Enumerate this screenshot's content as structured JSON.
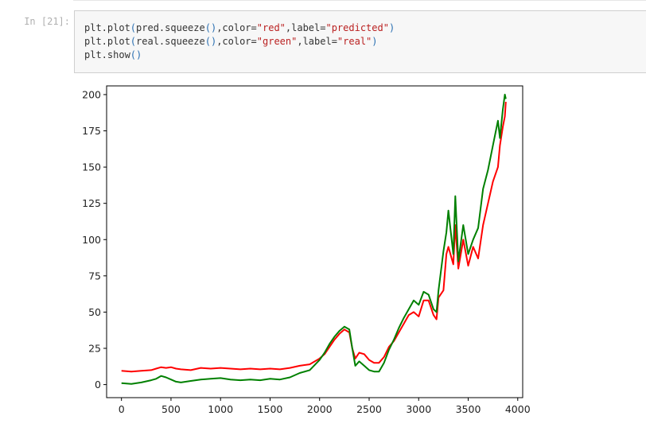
{
  "cell": {
    "prompt": "In [21]:",
    "code_lines": [
      {
        "parts": [
          {
            "t": "plt.plot",
            "c": "kw"
          },
          {
            "t": "(",
            "c": "paren"
          },
          {
            "t": "pred.squeeze",
            "c": "kw"
          },
          {
            "t": "()",
            "c": "paren"
          },
          {
            "t": ",color=",
            "c": "kw"
          },
          {
            "t": "\"red\"",
            "c": "str"
          },
          {
            "t": ",label=",
            "c": "kw"
          },
          {
            "t": "\"predicted\"",
            "c": "str"
          },
          {
            "t": ")",
            "c": "paren"
          }
        ]
      },
      {
        "parts": [
          {
            "t": "plt.plot",
            "c": "kw"
          },
          {
            "t": "(",
            "c": "paren"
          },
          {
            "t": "real.squeeze",
            "c": "kw"
          },
          {
            "t": "()",
            "c": "paren"
          },
          {
            "t": ",color=",
            "c": "kw"
          },
          {
            "t": "\"green\"",
            "c": "str"
          },
          {
            "t": ",label=",
            "c": "kw"
          },
          {
            "t": "\"real\"",
            "c": "str"
          },
          {
            "t": ")",
            "c": "paren"
          }
        ]
      },
      {
        "parts": [
          {
            "t": "plt.show",
            "c": "kw"
          },
          {
            "t": "()",
            "c": "paren"
          }
        ]
      }
    ]
  },
  "chart_data": {
    "type": "line",
    "title": "",
    "xlabel": "",
    "ylabel": "",
    "xlim": [
      -150,
      4050
    ],
    "ylim": [
      -9,
      206
    ],
    "x_ticks": [
      0,
      500,
      1000,
      1500,
      2000,
      2500,
      3000,
      3500,
      4000
    ],
    "y_ticks": [
      0,
      25,
      50,
      75,
      100,
      125,
      150,
      175,
      200
    ],
    "grid": false,
    "legend": false,
    "series": [
      {
        "color": "#ff0000",
        "x": [
          0,
          100,
          200,
          300,
          350,
          400,
          450,
          500,
          550,
          600,
          700,
          800,
          900,
          1000,
          1100,
          1200,
          1300,
          1400,
          1500,
          1600,
          1700,
          1800,
          1900,
          2000,
          2050,
          2100,
          2150,
          2200,
          2250,
          2300,
          2330,
          2360,
          2400,
          2450,
          2500,
          2550,
          2600,
          2650,
          2700,
          2750,
          2800,
          2850,
          2900,
          2950,
          3000,
          3050,
          3100,
          3150,
          3180,
          3200,
          3250,
          3280,
          3300,
          3350,
          3370,
          3400,
          3450,
          3500,
          3550,
          3600,
          3650,
          3700,
          3750,
          3800,
          3820,
          3850,
          3870,
          3880
        ],
        "values": [
          9.5,
          9,
          9.5,
          10,
          11,
          12,
          11.5,
          12,
          11,
          10.5,
          10,
          11.5,
          11,
          11.5,
          11,
          10.5,
          11,
          10.5,
          11,
          10.5,
          11.5,
          13,
          14,
          18,
          21,
          26,
          31,
          35,
          38,
          36,
          25,
          18,
          22,
          21,
          17,
          15,
          15,
          19,
          26,
          30,
          36,
          42,
          48,
          50,
          47,
          58,
          58,
          48,
          45,
          60,
          65,
          90,
          95,
          83,
          110,
          80,
          100,
          82,
          95,
          87,
          110,
          125,
          140,
          150,
          165,
          178,
          185,
          195
        ]
      },
      {
        "color": "#008000",
        "x": [
          0,
          100,
          200,
          300,
          350,
          400,
          450,
          500,
          550,
          600,
          700,
          800,
          900,
          1000,
          1100,
          1200,
          1300,
          1400,
          1500,
          1600,
          1700,
          1800,
          1900,
          2000,
          2050,
          2100,
          2150,
          2200,
          2250,
          2300,
          2330,
          2360,
          2400,
          2450,
          2500,
          2550,
          2600,
          2650,
          2700,
          2750,
          2800,
          2850,
          2900,
          2950,
          3000,
          3050,
          3100,
          3150,
          3180,
          3200,
          3250,
          3280,
          3300,
          3350,
          3370,
          3400,
          3450,
          3500,
          3550,
          3600,
          3650,
          3700,
          3750,
          3800,
          3820,
          3850,
          3870,
          3880
        ],
        "values": [
          1,
          0.5,
          1.5,
          3,
          4,
          6,
          5,
          3.5,
          2,
          1.5,
          2.5,
          3.5,
          4,
          4.5,
          3.5,
          3,
          3.5,
          3,
          4,
          3.5,
          5,
          8,
          10,
          17,
          22,
          28,
          33,
          37,
          40,
          38,
          25,
          13,
          16,
          13,
          10,
          9,
          9,
          15,
          24,
          31,
          39,
          46,
          52,
          58,
          55,
          64,
          62,
          52,
          50,
          65,
          92,
          105,
          120,
          90,
          130,
          85,
          110,
          90,
          100,
          108,
          135,
          148,
          165,
          182,
          170,
          190,
          200,
          197
        ]
      }
    ]
  }
}
